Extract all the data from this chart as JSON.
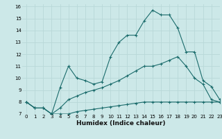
{
  "xlabel": "Humidex (Indice chaleur)",
  "xlim": [
    -0.5,
    23
  ],
  "ylim": [
    7,
    16.2
  ],
  "yticks": [
    7,
    8,
    9,
    10,
    11,
    12,
    13,
    14,
    15,
    16
  ],
  "xticks": [
    0,
    1,
    2,
    3,
    4,
    5,
    6,
    7,
    8,
    9,
    10,
    11,
    12,
    13,
    14,
    15,
    16,
    17,
    18,
    19,
    20,
    21,
    22,
    23
  ],
  "bg_color": "#cce8e8",
  "grid_color": "#b8d8d8",
  "line_color": "#1a6b6b",
  "line1_x": [
    0,
    1,
    2,
    3,
    4,
    5,
    6,
    7,
    8,
    9,
    10,
    11,
    12,
    13,
    14,
    15,
    16,
    17,
    18,
    19,
    20,
    21,
    22,
    23
  ],
  "line1_y": [
    8.0,
    7.5,
    7.5,
    7.0,
    7.0,
    7.0,
    7.2,
    7.3,
    7.4,
    7.5,
    7.6,
    7.7,
    7.8,
    7.9,
    8.0,
    8.0,
    8.0,
    8.0,
    8.0,
    8.0,
    8.0,
    8.0,
    8.0,
    8.0
  ],
  "line2_x": [
    0,
    1,
    2,
    3,
    4,
    5,
    6,
    7,
    8,
    9,
    10,
    11,
    12,
    13,
    14,
    15,
    16,
    17,
    18,
    19,
    20,
    21,
    22,
    23
  ],
  "line2_y": [
    8.0,
    7.5,
    7.5,
    7.0,
    7.5,
    8.2,
    8.5,
    8.8,
    9.0,
    9.2,
    9.5,
    9.8,
    10.2,
    10.6,
    11.0,
    11.0,
    11.2,
    11.5,
    11.8,
    11.0,
    10.0,
    9.5,
    8.2,
    8.0
  ],
  "line3_x": [
    0,
    1,
    2,
    3,
    4,
    5,
    6,
    7,
    8,
    9,
    10,
    11,
    12,
    13,
    14,
    15,
    16,
    17,
    18,
    19,
    20,
    21,
    22,
    23
  ],
  "line3_y": [
    8.0,
    7.5,
    7.5,
    7.0,
    9.2,
    11.0,
    10.0,
    9.8,
    9.5,
    9.7,
    11.8,
    13.0,
    13.6,
    13.6,
    14.8,
    15.7,
    15.3,
    15.3,
    14.2,
    12.2,
    12.2,
    9.8,
    9.3,
    8.2
  ],
  "line1_marker_x": [
    0,
    1,
    2,
    3,
    4,
    5,
    6,
    7,
    8,
    9,
    10,
    11,
    12,
    13,
    14,
    15,
    16,
    17,
    18,
    19,
    20,
    21,
    22,
    23
  ],
  "line1_marker_y": [
    8.0,
    7.5,
    7.5,
    7.0,
    7.0,
    7.0,
    7.2,
    7.3,
    7.4,
    7.5,
    7.6,
    7.7,
    7.8,
    7.9,
    8.0,
    8.0,
    8.0,
    8.0,
    8.0,
    8.0,
    8.0,
    8.0,
    8.0,
    8.0
  ],
  "line2_marker_x": [
    0,
    1,
    2,
    3,
    4,
    5,
    6,
    7,
    8,
    9,
    10,
    11,
    12,
    13,
    14,
    15,
    16,
    17,
    18,
    19,
    20,
    21,
    22,
    23
  ],
  "line2_marker_y": [
    8.0,
    7.5,
    7.5,
    7.0,
    7.5,
    8.2,
    8.5,
    8.8,
    9.0,
    9.2,
    9.5,
    9.8,
    10.2,
    10.6,
    11.0,
    11.0,
    11.2,
    11.5,
    11.8,
    11.0,
    10.0,
    9.5,
    8.2,
    8.0
  ],
  "line3_marker_x": [
    0,
    1,
    2,
    3,
    4,
    5,
    6,
    7,
    8,
    9,
    10,
    11,
    12,
    13,
    14,
    15,
    16,
    17,
    18,
    19,
    20,
    21,
    22,
    23
  ],
  "line3_marker_y": [
    8.0,
    7.5,
    7.5,
    7.0,
    9.2,
    11.0,
    10.0,
    9.8,
    9.5,
    9.7,
    11.8,
    13.0,
    13.6,
    13.6,
    14.8,
    15.7,
    15.3,
    15.3,
    14.2,
    12.2,
    12.2,
    9.8,
    9.3,
    8.2
  ]
}
